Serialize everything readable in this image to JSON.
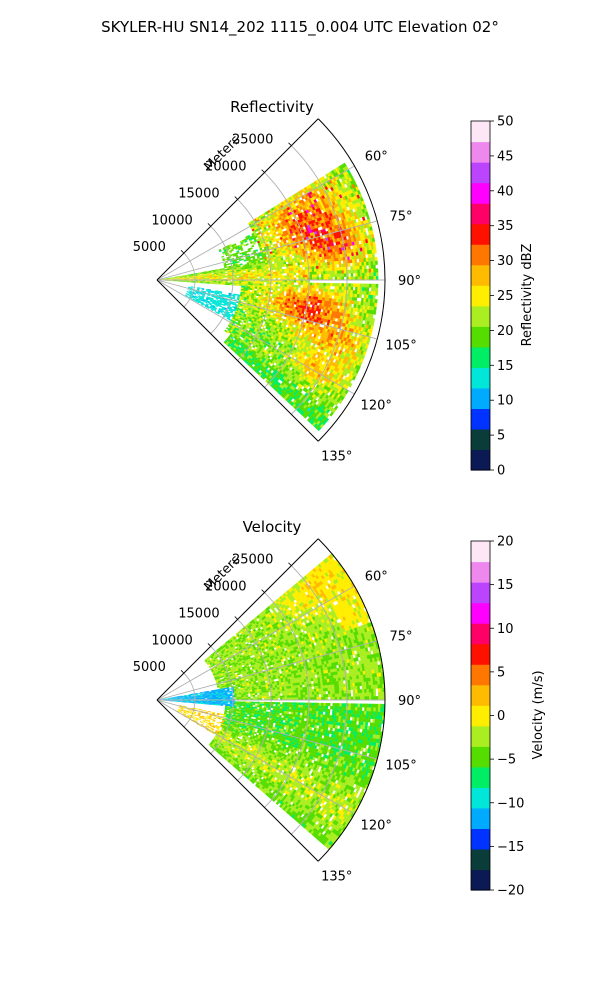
{
  "figure": {
    "suptitle": "SKYLER-HU  SN14_202  1115_0.004 UTC Elevation 02°"
  },
  "panels": [
    {
      "title": "Reflectivity",
      "radial_label": "Meters",
      "colorbar_label": "Reflectivity dBZ"
    },
    {
      "title": "Velocity",
      "radial_label": "Meters",
      "colorbar_label": "Velocity (m/s)"
    }
  ],
  "chart_data": [
    {
      "type": "polar-sector-heatmap",
      "title": "Reflectivity",
      "theta_range_deg": [
        45,
        135
      ],
      "theta_ticks_deg": [
        60,
        75,
        90,
        105,
        120,
        135
      ],
      "theta_tick_labels": [
        "60°",
        "75°",
        "90°",
        "105°",
        "120°",
        "135°"
      ],
      "r_range_m": [
        0,
        30000
      ],
      "r_ticks": [
        5000,
        10000,
        15000,
        20000,
        25000
      ],
      "r_tick_labels": [
        "5000",
        "10000",
        "15000",
        "20000",
        "25000"
      ],
      "r_axis_label": "Meters",
      "grid": true,
      "colorbar": {
        "label": "Reflectivity dBZ",
        "range": [
          0,
          50
        ],
        "ticks": [
          0,
          5,
          10,
          15,
          20,
          25,
          30,
          35,
          40,
          45,
          50
        ],
        "tick_labels": [
          "0",
          "5",
          "10",
          "15",
          "20",
          "25",
          "30",
          "35",
          "40",
          "45",
          "50"
        ],
        "colors": [
          "#0b1a55",
          "#0a3d3a",
          "#0033ff",
          "#00aaff",
          "#00e6d8",
          "#00ee66",
          "#55dd00",
          "#aaee22",
          "#ffee00",
          "#ffbb00",
          "#ff7700",
          "#ff1100",
          "#ff0066",
          "#ff00ff",
          "#bb44ff",
          "#ee88ee",
          "#fde6f6"
        ]
      },
      "features": [
        {
          "theta_deg": [
            62,
            88
          ],
          "r_m": [
            17000,
            28000
          ],
          "value_dbz": 30,
          "peak_dbz": 40
        },
        {
          "theta_deg": [
            92,
            110
          ],
          "r_m": [
            14000,
            27000
          ],
          "value_dbz": 30,
          "peak_dbz": 38
        },
        {
          "theta_deg": [
            110,
            122
          ],
          "r_m": [
            17000,
            29000
          ],
          "value_dbz": 27,
          "peak_dbz": 36
        },
        {
          "theta_deg": [
            80,
            92
          ],
          "r_m": [
            500,
            16000
          ],
          "value_dbz": 22,
          "peak_dbz": 27
        },
        {
          "theta_deg": [
            104,
            118
          ],
          "r_m": [
            4500,
            11000
          ],
          "value_dbz": 13,
          "peak_dbz": 16
        }
      ]
    },
    {
      "type": "polar-sector-heatmap",
      "title": "Velocity",
      "theta_range_deg": [
        45,
        135
      ],
      "theta_ticks_deg": [
        60,
        75,
        90,
        105,
        120,
        135
      ],
      "theta_tick_labels": [
        "60°",
        "75°",
        "90°",
        "105°",
        "120°",
        "135°"
      ],
      "r_range_m": [
        0,
        30000
      ],
      "r_ticks": [
        5000,
        10000,
        15000,
        20000,
        25000
      ],
      "r_tick_labels": [
        "5000",
        "10000",
        "15000",
        "20000",
        "25000"
      ],
      "r_axis_label": "Meters",
      "grid": true,
      "colorbar": {
        "label": "Velocity (m/s)",
        "range": [
          -20,
          20
        ],
        "ticks": [
          -20,
          -15,
          -10,
          -5,
          0,
          5,
          10,
          15,
          20
        ],
        "tick_labels": [
          "−20",
          "−15",
          "−10",
          "−5",
          "0",
          "5",
          "10",
          "15",
          "20"
        ],
        "colors": [
          "#0b1a55",
          "#0a3d3a",
          "#0033ff",
          "#00aaff",
          "#00e6d8",
          "#00ee66",
          "#55dd00",
          "#aaee22",
          "#ffee00",
          "#ffbb00",
          "#ff7700",
          "#ff1100",
          "#ff0066",
          "#ff00ff",
          "#bb44ff",
          "#ee88ee",
          "#fde6f6"
        ]
      },
      "features": [
        {
          "theta_deg": [
            55,
            88
          ],
          "r_m": [
            9000,
            29000
          ],
          "value_ms": -2
        },
        {
          "theta_deg": [
            92,
            128
          ],
          "r_m": [
            10000,
            29000
          ],
          "value_ms": -4
        },
        {
          "theta_deg": [
            80,
            93
          ],
          "r_m": [
            500,
            9000
          ],
          "value_ms": -11
        },
        {
          "theta_deg": [
            103,
            118
          ],
          "r_m": [
            3000,
            9000
          ],
          "value_ms": 1
        }
      ]
    }
  ]
}
